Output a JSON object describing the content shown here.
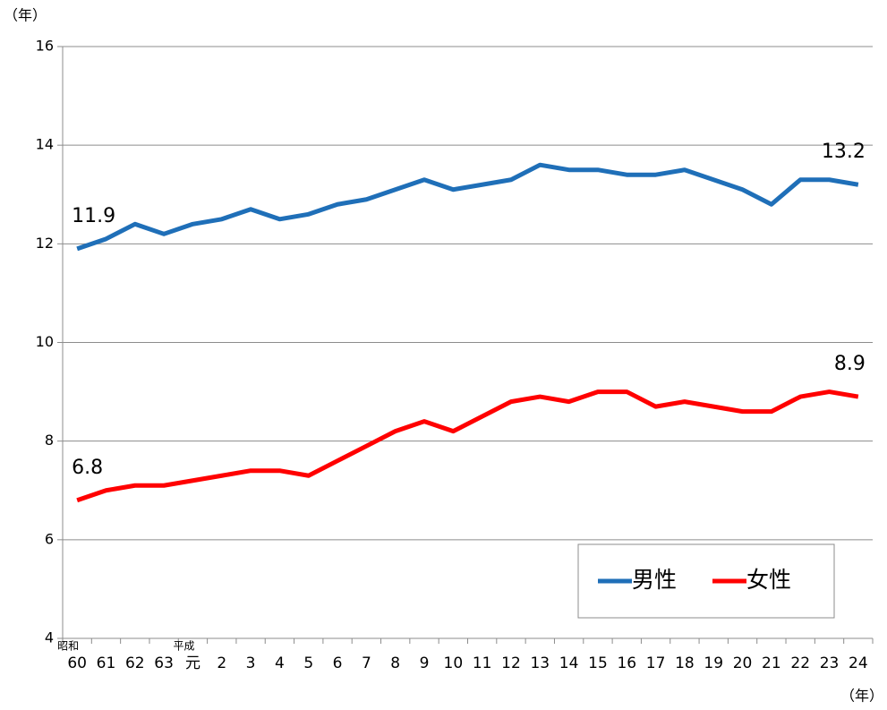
{
  "chart_data": {
    "type": "line",
    "ylabel": "（年）",
    "xlabel": "（年）",
    "categories": [
      "60",
      "61",
      "62",
      "63",
      "元",
      "2",
      "3",
      "4",
      "5",
      "6",
      "7",
      "8",
      "9",
      "10",
      "11",
      "12",
      "13",
      "14",
      "15",
      "16",
      "17",
      "18",
      "19",
      "20",
      "21",
      "22",
      "23",
      "24"
    ],
    "annotations": [
      {
        "text": "昭和",
        "x": "60"
      },
      {
        "text": "平成",
        "x": "元"
      }
    ],
    "series": [
      {
        "name": "男性",
        "color": "#1f6fb8",
        "values": [
          11.9,
          12.1,
          12.4,
          12.2,
          12.4,
          12.5,
          12.7,
          12.5,
          12.6,
          12.8,
          12.9,
          13.1,
          13.3,
          13.1,
          13.2,
          13.3,
          13.6,
          13.5,
          13.5,
          13.4,
          13.4,
          13.5,
          13.3,
          13.1,
          12.8,
          13.3,
          13.3,
          13.2
        ],
        "value_labels": [
          "11.9",
          null,
          null,
          null,
          null,
          null,
          null,
          null,
          null,
          null,
          null,
          null,
          null,
          null,
          null,
          null,
          null,
          null,
          null,
          null,
          null,
          null,
          null,
          null,
          null,
          null,
          null,
          "13.2"
        ]
      },
      {
        "name": "女性",
        "color": "#ff0000",
        "values": [
          6.8,
          7.0,
          7.1,
          7.1,
          7.2,
          7.3,
          7.4,
          7.4,
          7.3,
          7.6,
          7.9,
          8.2,
          8.4,
          8.2,
          8.5,
          8.8,
          8.9,
          8.8,
          9.0,
          9.0,
          8.7,
          8.8,
          8.7,
          8.6,
          8.6,
          8.9,
          9.0,
          8.9
        ],
        "value_labels": [
          "6.8",
          null,
          null,
          null,
          null,
          null,
          null,
          null,
          null,
          null,
          null,
          null,
          null,
          null,
          null,
          null,
          null,
          null,
          null,
          null,
          null,
          null,
          null,
          null,
          null,
          null,
          null,
          "8.9"
        ]
      }
    ],
    "ylim": [
      4,
      16
    ],
    "yticks": [
      4,
      6,
      8,
      10,
      12,
      14,
      16
    ],
    "grid": true,
    "legend": "lower right"
  }
}
